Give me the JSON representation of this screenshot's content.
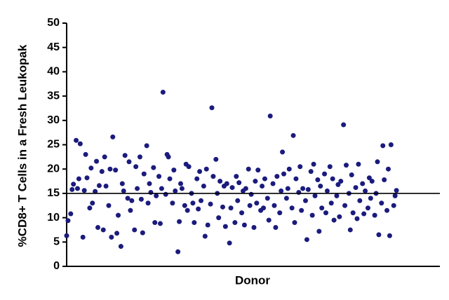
{
  "chart_data": {
    "type": "scatter",
    "ylabel": "%CD8+ T Cells in a Fresh Leukopak",
    "xlabel": "Donor",
    "color": "#1b1b7d",
    "reference_line": 15,
    "xlim": [
      0,
      275
    ],
    "ylim": [
      0,
      50
    ],
    "yticks": [
      0,
      5,
      10,
      15,
      20,
      25,
      30,
      35,
      40,
      45,
      50
    ],
    "x": [
      0,
      1,
      3,
      4,
      5,
      7,
      8,
      9,
      10,
      12,
      13,
      14,
      15,
      17,
      18,
      19,
      21,
      22,
      23,
      24,
      26,
      27,
      28,
      29,
      31,
      32,
      33,
      34,
      36,
      37,
      38,
      40,
      41,
      42,
      43,
      45,
      46,
      47,
      48,
      50,
      51,
      52,
      54,
      55,
      56,
      57,
      59,
      60,
      61,
      62,
      64,
      65,
      66,
      68,
      69,
      70,
      71,
      73,
      74,
      75,
      76,
      78,
      79,
      80,
      82,
      83,
      84,
      85,
      87,
      88,
      89,
      90,
      92,
      93,
      94,
      96,
      97,
      98,
      99,
      101,
      102,
      103,
      104,
      106,
      107,
      108,
      110,
      111,
      112,
      113,
      115,
      116,
      117,
      118,
      120,
      121,
      122,
      124,
      125,
      126,
      127,
      129,
      130,
      131,
      132,
      134,
      135,
      136,
      138,
      139,
      140,
      141,
      143,
      144,
      145,
      146,
      148,
      149,
      150,
      152,
      153,
      154,
      155,
      157,
      158,
      159,
      160,
      162,
      163,
      164,
      166,
      167,
      168,
      169,
      171,
      172,
      173,
      174,
      176,
      177,
      178,
      180,
      181,
      182,
      183,
      185,
      186,
      187,
      188,
      190,
      191,
      192,
      194,
      195,
      196,
      197,
      199,
      200,
      201,
      202,
      204,
      205,
      206,
      208,
      209,
      210,
      211,
      213,
      214,
      215,
      216,
      218,
      219,
      220,
      222,
      223,
      224,
      225,
      227,
      228,
      229,
      230,
      232,
      233,
      234,
      236,
      237,
      238,
      239,
      241,
      242,
      243
    ],
    "values": [
      6.3,
      9.4,
      10.8,
      15.8,
      16.9,
      25.9,
      16.0,
      18.0,
      25.2,
      6.0,
      15.6,
      23.0,
      18.2,
      12.0,
      20.2,
      13.0,
      15.4,
      21.6,
      8.0,
      16.6,
      19.5,
      7.5,
      22.5,
      16.5,
      12.5,
      20.0,
      6.0,
      26.6,
      19.8,
      6.8,
      10.5,
      4.1,
      17.0,
      15.5,
      22.8,
      14.0,
      21.5,
      11.5,
      13.5,
      7.5,
      20.5,
      16.0,
      22.5,
      13.8,
      6.9,
      19.0,
      24.8,
      13.0,
      17.0,
      15.2,
      20.3,
      9.0,
      14.5,
      18.5,
      8.8,
      16.0,
      35.8,
      14.8,
      23.0,
      22.5,
      18.0,
      13.0,
      19.8,
      15.5,
      3.0,
      9.2,
      17.0,
      16.0,
      12.5,
      21.0,
      11.5,
      20.5,
      15.0,
      13.0,
      9.0,
      18.0,
      11.8,
      19.5,
      13.5,
      16.5,
      6.2,
      20.0,
      8.5,
      12.8,
      32.6,
      18.5,
      22.0,
      15.0,
      10.0,
      17.5,
      12.2,
      16.5,
      8.2,
      17.0,
      4.8,
      12.0,
      16.2,
      9.0,
      18.5,
      13.5,
      17.2,
      11.0,
      15.5,
      8.5,
      16.0,
      20.0,
      12.5,
      14.8,
      8.0,
      17.5,
      13.0,
      19.8,
      11.5,
      16.5,
      12.0,
      18.0,
      14.0,
      9.5,
      30.9,
      17.0,
      12.5,
      8.0,
      18.5,
      11.0,
      15.5,
      23.5,
      19.0,
      14.0,
      16.0,
      20.0,
      12.0,
      26.9,
      9.0,
      18.0,
      15.2,
      20.5,
      11.5,
      16.0,
      13.5,
      5.5,
      15.8,
      19.5,
      10.5,
      21.0,
      14.5,
      17.8,
      7.2,
      16.5,
      12.0,
      19.0,
      11.0,
      15.5,
      20.5,
      13.0,
      18.0,
      9.5,
      14.5,
      16.8,
      10.2,
      17.5,
      29.1,
      12.5,
      20.8,
      15.0,
      7.5,
      18.8,
      11.0,
      16.2,
      9.8,
      21.0,
      13.5,
      17.0,
      10.8,
      15.5,
      12.0,
      18.2,
      14.0,
      17.5,
      10.5,
      15.0,
      21.5,
      6.5,
      13.0,
      24.8,
      17.8,
      11.5,
      20.0,
      6.3,
      25.0,
      12.5,
      14.5,
      15.6
    ]
  }
}
